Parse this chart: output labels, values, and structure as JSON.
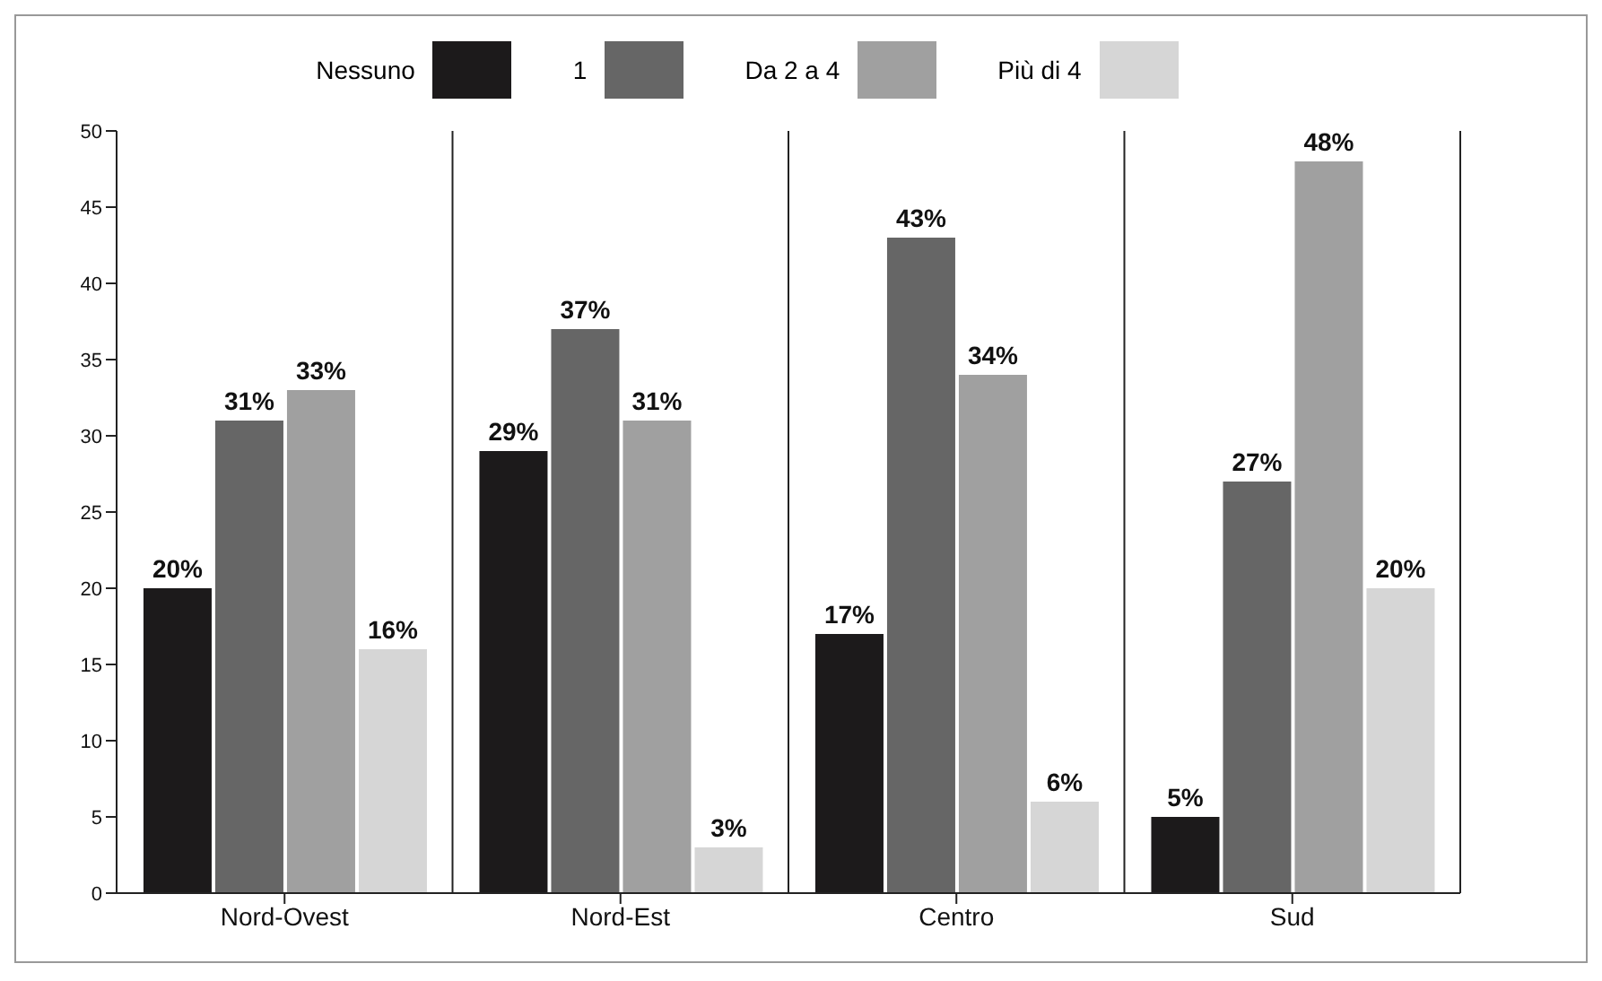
{
  "chart_data": {
    "type": "bar",
    "categories": [
      "Nord-Ovest",
      "Nord-Est",
      "Centro",
      "Sud"
    ],
    "series": [
      {
        "name": "Nessuno",
        "color": "#1c1a1b",
        "values": [
          20,
          29,
          17,
          5
        ],
        "value_labels": [
          "20%",
          "29%",
          "17%",
          "5%"
        ]
      },
      {
        "name": "1",
        "color": "#666666",
        "values": [
          31,
          37,
          43,
          27
        ],
        "value_labels": [
          "31%",
          "37%",
          "43%",
          "27%"
        ]
      },
      {
        "name": "Da 2 a 4",
        "color": "#a0a0a0",
        "values": [
          33,
          31,
          34,
          48
        ],
        "value_labels": [
          "33%",
          "31%",
          "34%",
          "48%"
        ]
      },
      {
        "name": "Più di 4",
        "color": "#d6d6d6",
        "values": [
          16,
          3,
          6,
          20
        ],
        "value_labels": [
          "16%",
          "3%",
          "6%",
          "20%"
        ]
      }
    ],
    "ylim": [
      0,
      50
    ],
    "yticks": [
      0,
      5,
      10,
      15,
      20,
      25,
      30,
      35,
      40,
      45,
      50
    ],
    "grid": "x",
    "legend": "top"
  }
}
